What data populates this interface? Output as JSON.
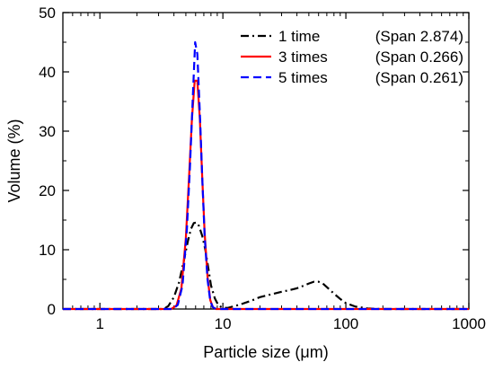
{
  "chart_data": {
    "type": "line",
    "xlabel": "Particle size (μm)",
    "ylabel": "Volume (%)",
    "xscale": "log",
    "xlim": [
      0.5,
      1000
    ],
    "ylim": [
      0,
      50
    ],
    "xticks": [
      1,
      10,
      100,
      1000
    ],
    "xtick_labels": [
      "1",
      "10",
      "100",
      "1000"
    ],
    "yticks": [
      0,
      10,
      20,
      30,
      40,
      50
    ],
    "ytick_labels": [
      "0",
      "10",
      "20",
      "30",
      "40",
      "50"
    ],
    "grid": false,
    "legend_position": "top-right",
    "series": [
      {
        "name": "1 time",
        "span_label": "(Span  2.874)",
        "color": "#000000",
        "dash": "dash-dot",
        "x": [
          3.3,
          3.6,
          4.0,
          4.4,
          4.8,
          5.2,
          5.5,
          5.8,
          6.1,
          6.4,
          6.8,
          7.2,
          7.6,
          8.0,
          8.6,
          9.2,
          10,
          11,
          12,
          14,
          17,
          20,
          25,
          30,
          35,
          40,
          45,
          50,
          55,
          60,
          65,
          70,
          80,
          90,
          100,
          120,
          150,
          180,
          200
        ],
        "y": [
          0,
          0.5,
          2.0,
          4.5,
          8.0,
          11.5,
          13.5,
          14.5,
          14.6,
          14.0,
          12.3,
          10.0,
          7.0,
          4.0,
          1.8,
          0.6,
          0.2,
          0.2,
          0.4,
          0.8,
          1.4,
          2.0,
          2.5,
          2.9,
          3.2,
          3.5,
          3.9,
          4.3,
          4.6,
          4.6,
          4.3,
          3.7,
          2.6,
          1.7,
          1.0,
          0.4,
          0.1,
          0.02,
          0
        ]
      },
      {
        "name": "3 times",
        "span_label": "(Span  0.266)",
        "color": "#ff0000",
        "dash": "solid",
        "x": [
          3.8,
          4.2,
          4.6,
          5.0,
          5.3,
          5.6,
          5.9,
          6.2,
          6.5,
          6.8,
          7.1,
          7.5,
          7.9,
          8.3,
          8.8
        ],
        "y": [
          0,
          0.6,
          3.5,
          12.0,
          22.0,
          32.0,
          38.5,
          38.5,
          32.0,
          22.0,
          13.0,
          5.5,
          1.5,
          0.3,
          0
        ]
      },
      {
        "name": "5 times",
        "span_label": "(Span  0.261)",
        "color": "#0000ff",
        "dash": "dashed",
        "x": [
          3.9,
          4.3,
          4.7,
          5.1,
          5.4,
          5.7,
          5.95,
          6.2,
          6.5,
          6.8,
          7.1,
          7.5,
          7.9,
          8.3,
          8.8
        ],
        "y": [
          0,
          0.7,
          4.0,
          13.5,
          24.0,
          36.0,
          45.0,
          43.0,
          33.0,
          22.0,
          12.5,
          5.0,
          1.3,
          0.3,
          0
        ]
      }
    ]
  }
}
